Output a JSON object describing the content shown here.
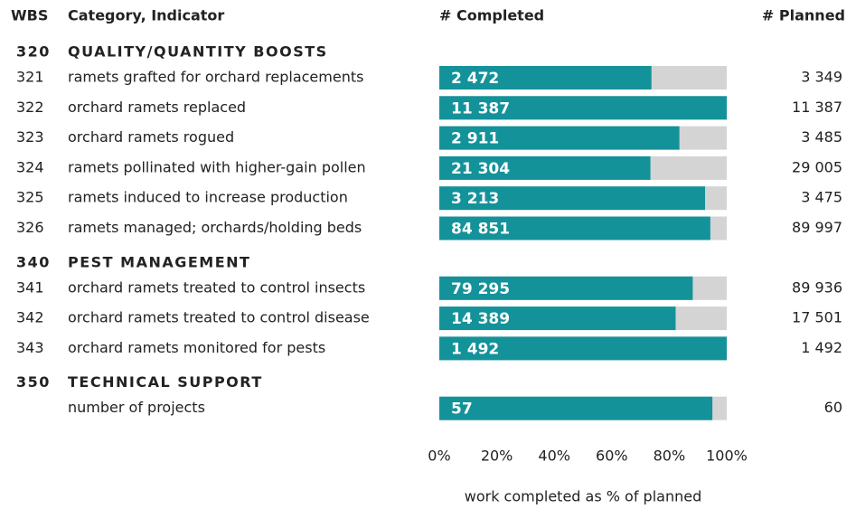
{
  "chart_data": {
    "type": "bar",
    "headers": {
      "wbs": "WBS",
      "category": "Category, Indicator",
      "completed": "# Completed",
      "planned": "# Planned"
    },
    "completed_color": "#14929a",
    "planned_color": "#d4d4d4",
    "group_color": "#1f9ba3",
    "groups": [
      {
        "wbs": "320",
        "name": "QUALITY/QUANTITY BOOSTS",
        "rows": [
          {
            "wbs": "321",
            "label": "ramets grafted for orchard replacements",
            "completed": 2472,
            "completed_label": "2 472",
            "planned": 3349,
            "planned_label": "3 349"
          },
          {
            "wbs": "322",
            "label": "orchard ramets replaced",
            "completed": 11387,
            "completed_label": "11 387",
            "planned": 11387,
            "planned_label": "11 387"
          },
          {
            "wbs": "323",
            "label": "orchard ramets rogued",
            "completed": 2911,
            "completed_label": "2 911",
            "planned": 3485,
            "planned_label": "3 485"
          },
          {
            "wbs": "324",
            "label": "ramets pollinated with higher-gain pollen",
            "completed": 21304,
            "completed_label": "21 304",
            "planned": 29005,
            "planned_label": "29 005"
          },
          {
            "wbs": "325",
            "label": "ramets induced to increase production",
            "completed": 3213,
            "completed_label": "3 213",
            "planned": 3475,
            "planned_label": "3 475"
          },
          {
            "wbs": "326",
            "label": "ramets managed; orchards/holding beds",
            "completed": 84851,
            "completed_label": "84 851",
            "planned": 89997,
            "planned_label": "89 997"
          }
        ]
      },
      {
        "wbs": "340",
        "name": "PEST MANAGEMENT",
        "rows": [
          {
            "wbs": "341",
            "label": "orchard ramets treated to control insects",
            "completed": 79295,
            "completed_label": "79 295",
            "planned": 89936,
            "planned_label": "89 936"
          },
          {
            "wbs": "342",
            "label": "orchard ramets treated to control disease",
            "completed": 14389,
            "completed_label": "14 389",
            "planned": 17501,
            "planned_label": "17 501"
          },
          {
            "wbs": "343",
            "label": "orchard ramets monitored for pests",
            "completed": 1492,
            "completed_label": "1 492",
            "planned": 1492,
            "planned_label": "1 492"
          }
        ]
      },
      {
        "wbs": "350",
        "name": "TECHNICAL SUPPORT",
        "rows": [
          {
            "wbs": null,
            "label": "number of projects",
            "completed": 57,
            "planned": 60
          }
        ]
      }
    ],
    "xlim": [
      0,
      100
    ],
    "xticks": [
      {
        "value": 0,
        "label": "0%"
      },
      {
        "value": 20,
        "label": "20%"
      },
      {
        "value": 40,
        "label": "40%"
      },
      {
        "value": 60,
        "label": "60%"
      },
      {
        "value": 80,
        "label": "80%"
      },
      {
        "value": 100,
        "label": "100%"
      }
    ],
    "xlabel": "work completed as % of planned"
  }
}
